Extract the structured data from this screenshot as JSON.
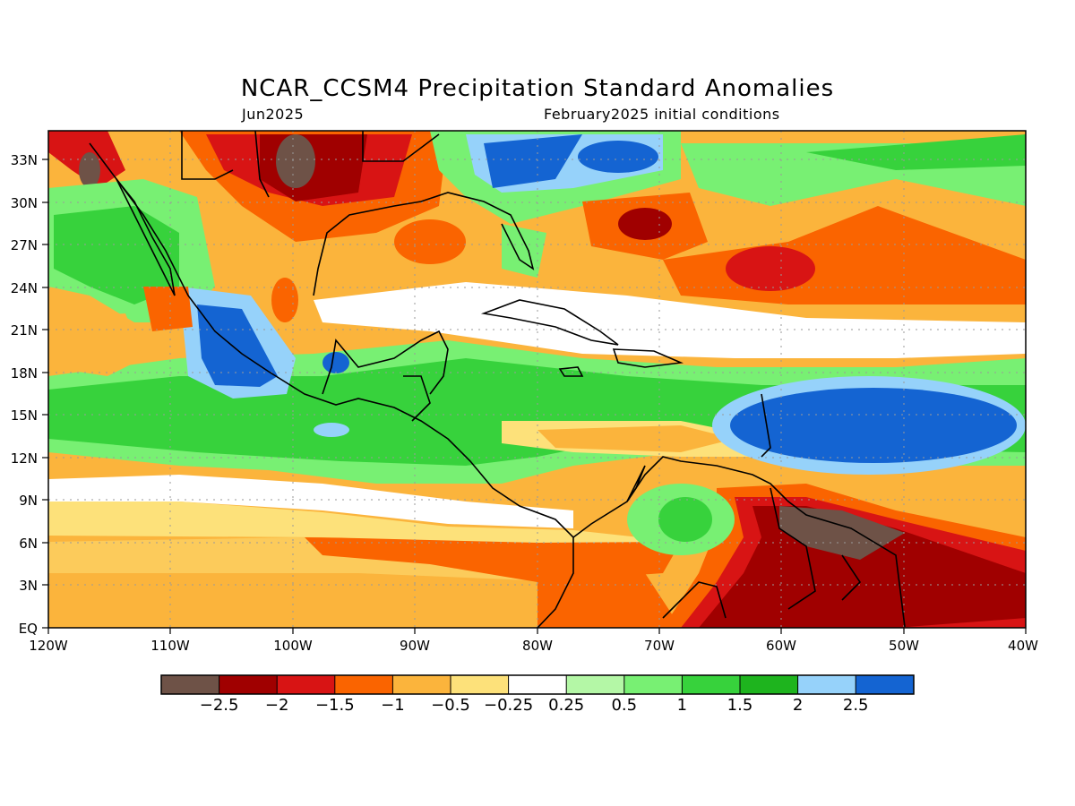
{
  "title": "NCAR_CCSM4 Precipitation Standard Anomalies",
  "subtitle_left": "Jun2025",
  "subtitle_right": "February2025 initial conditions",
  "lat_labels": [
    "33N",
    "30N",
    "27N",
    "24N",
    "21N",
    "18N",
    "15N",
    "12N",
    "9N",
    "6N",
    "3N",
    "EQ"
  ],
  "lon_labels": [
    "120W",
    "110W",
    "100W",
    "90W",
    "80W",
    "70W",
    "60W",
    "50W",
    "40W"
  ],
  "colorbar": {
    "colors": [
      "#6e5247",
      "#a00000",
      "#d81414",
      "#fa6400",
      "#fbb43c",
      "#fde17a",
      "#ffffff",
      "#b4f7a6",
      "#78f073",
      "#37d23c",
      "#1eb41e",
      "#96d2fa",
      "#1464d2"
    ],
    "labels": [
      "−2.5",
      "−2",
      "−1.5",
      "−1",
      "−0.5",
      "−0.25",
      "0.25",
      "0.5",
      "1",
      "1.5",
      "2",
      "2.5"
    ]
  },
  "colors": {
    "ocean_base": "#fbb43c",
    "coast": "#000000",
    "grid": "#9a9a9a"
  }
}
